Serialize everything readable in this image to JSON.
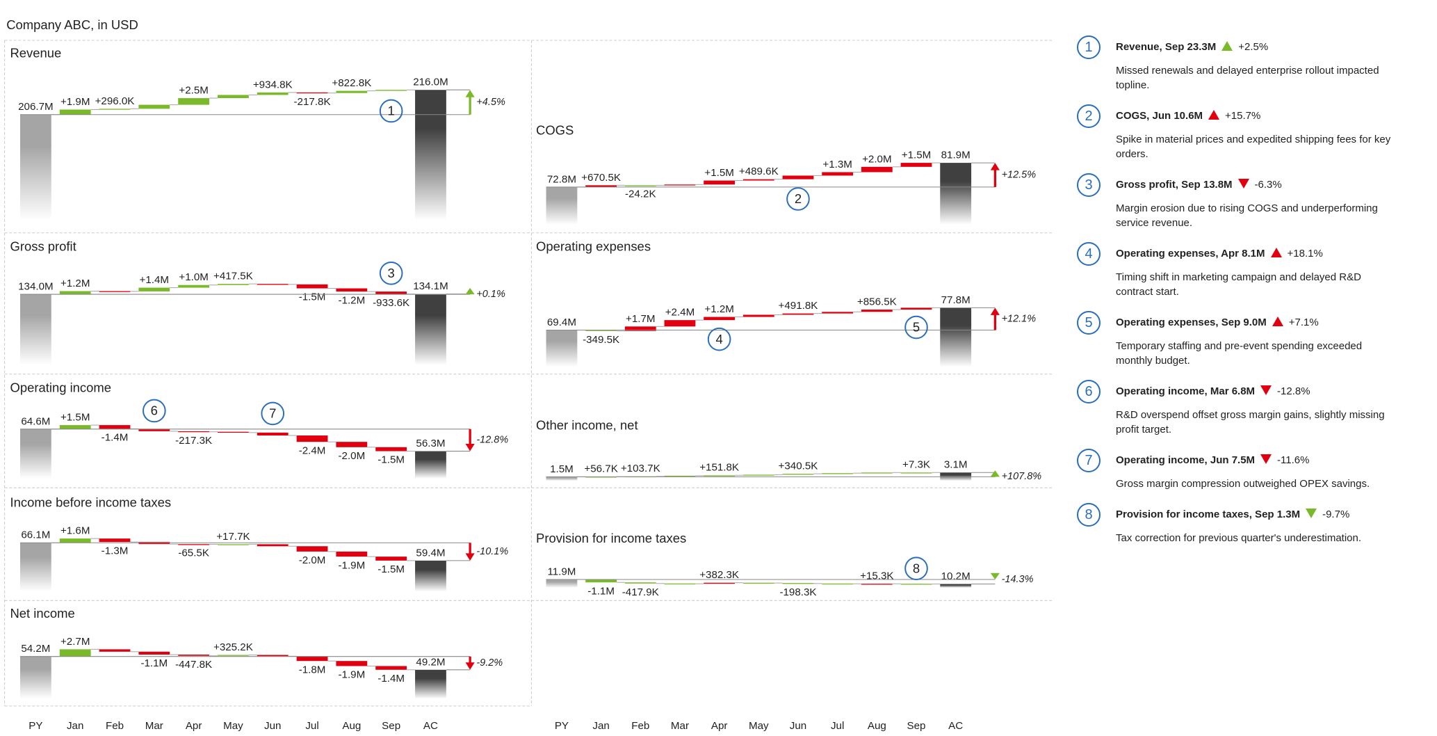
{
  "title": "Company ABC, in USD",
  "categories": [
    "PY",
    "Jan",
    "Feb",
    "Mar",
    "Apr",
    "May",
    "Jun",
    "Jul",
    "Aug",
    "Sep",
    "AC"
  ],
  "colors": {
    "good": "#7ab929",
    "bad": "#e1000f",
    "previous": "#a5a5a5",
    "actual": "#404040",
    "marker": "#2a6ebb"
  },
  "chart_data": [
    {
      "type": "waterfall",
      "title": "Revenue",
      "values": [
        206700000,
        1900000,
        296000,
        1500000,
        2500000,
        1200000,
        934800,
        -217800,
        822800,
        364000,
        216000000
      ],
      "value_labels": [
        "206.7M",
        "+1.9M",
        "+296.0K",
        null,
        "+2.5M",
        null,
        "+934.8K",
        "-217.8K",
        "+822.8K",
        null,
        "216.0M"
      ],
      "variance": {
        "value": 4.5,
        "label": "+4.5%"
      },
      "markers": [
        {
          "label": "1",
          "category": "Sep"
        }
      ]
    },
    {
      "type": "waterfall",
      "title": "Gross profit",
      "values": [
        134000000,
        1200000,
        -100000,
        1400000,
        1000000,
        417500,
        -184000,
        -1500000,
        -1200000,
        -933600,
        134100000
      ],
      "value_labels": [
        "134.0M",
        "+1.2M",
        null,
        "+1.4M",
        "+1.0M",
        "+417.5K",
        null,
        "-1.5M",
        "-1.2M",
        "-933.6K",
        "134.1M"
      ],
      "variance": {
        "value": 0.1,
        "label": "+0.1%"
      },
      "markers": [
        {
          "label": "3",
          "category": "Sep"
        }
      ]
    },
    {
      "type": "waterfall",
      "title": "Operating income",
      "values": [
        64600000,
        1500000,
        -1400000,
        -900000,
        -217300,
        -300000,
        -1082700,
        -2400000,
        -2000000,
        -1500000,
        56300000
      ],
      "value_labels": [
        "64.6M",
        "+1.5M",
        "-1.4M",
        null,
        "-217.3K",
        null,
        null,
        "-2.4M",
        "-2.0M",
        "-1.5M",
        "56.3M"
      ],
      "variance": {
        "value": -12.8,
        "label": "-12.8%"
      },
      "markers": [
        {
          "label": "6",
          "category": "Mar"
        },
        {
          "label": "7",
          "category": "Jun"
        }
      ]
    },
    {
      "type": "waterfall",
      "title": "Income before income taxes",
      "values": [
        66100000,
        1600000,
        -1300000,
        -800000,
        -65500,
        17700,
        -752200,
        -2000000,
        -1900000,
        -1500000,
        59400000
      ],
      "value_labels": [
        "66.1M",
        "+1.6M",
        "-1.3M",
        null,
        "-65.5K",
        "+17.7K",
        null,
        "-2.0M",
        "-1.9M",
        "-1.5M",
        "59.4M"
      ],
      "variance": {
        "value": -10.1,
        "label": "-10.1%"
      }
    },
    {
      "type": "waterfall",
      "title": "Net income",
      "values": [
        54200000,
        2700000,
        -900000,
        -1100000,
        -447800,
        325200,
        -477400,
        -1800000,
        -1900000,
        -1400000,
        49200000
      ],
      "value_labels": [
        "54.2M",
        "+2.7M",
        null,
        "-1.1M",
        "-447.8K",
        "+325.2K",
        null,
        "-1.8M",
        "-1.9M",
        "-1.4M",
        "49.2M"
      ],
      "variance": {
        "value": -9.2,
        "label": "-9.2%"
      }
    },
    {
      "type": "waterfall",
      "title": "COGS",
      "inverted": true,
      "values": [
        72800000,
        670500,
        -24200,
        300000,
        1500000,
        489600,
        1364100,
        1300000,
        2000000,
        1500000,
        81900000
      ],
      "value_labels": [
        "72.8M",
        "+670.5K",
        "-24.2K",
        null,
        "+1.5M",
        "+489.6K",
        null,
        "+1.3M",
        "+2.0M",
        "+1.5M",
        "81.9M"
      ],
      "variance": {
        "value": 12.5,
        "label": "+12.5%"
      },
      "markers": [
        {
          "label": "2",
          "category": "Jun"
        }
      ]
    },
    {
      "type": "waterfall",
      "title": "Operating expenses",
      "inverted": true,
      "values": [
        69400000,
        -349500,
        1700000,
        2400000,
        1200000,
        800000,
        491800,
        600000,
        856500,
        701200,
        77800000
      ],
      "value_labels": [
        "69.4M",
        "-349.5K",
        "+1.7M",
        "+2.4M",
        "+1.2M",
        null,
        "+491.8K",
        null,
        "+856.5K",
        null,
        "77.8M"
      ],
      "variance": {
        "value": 12.1,
        "label": "+12.1%"
      },
      "markers": [
        {
          "label": "4",
          "category": "Apr"
        },
        {
          "label": "5",
          "category": "Sep"
        }
      ]
    },
    {
      "type": "waterfall",
      "title": "Other income, net",
      "values": [
        1500000,
        56700,
        103700,
        235000,
        151800,
        235000,
        340500,
        235000,
        235000,
        7300,
        3100000
      ],
      "value_labels": [
        "1.5M",
        "+56.7K",
        "+103.7K",
        null,
        "+151.8K",
        null,
        "+340.5K",
        null,
        null,
        "+7.3K",
        "3.1M"
      ],
      "variance": {
        "value": 107.8,
        "label": "+107.8%"
      }
    },
    {
      "type": "waterfall",
      "title": "Provision for income taxes",
      "inverted": true,
      "values": [
        11900000,
        -1100000,
        -417900,
        -100000,
        382300,
        -100000,
        -198300,
        -100000,
        15300,
        -81400,
        10200000
      ],
      "value_labels": [
        "11.9M",
        "-1.1M",
        "-417.9K",
        null,
        "+382.3K",
        null,
        "-198.3K",
        null,
        "+15.3K",
        null,
        "10.2M"
      ],
      "variance": {
        "value": -14.3,
        "label": "-14.3%"
      },
      "markers": [
        {
          "label": "8",
          "category": "Sep"
        }
      ]
    }
  ],
  "notes": [
    {
      "number": "1",
      "heading": "Revenue, Sep 23.3M",
      "change": {
        "value": 2.5,
        "label": "+2.5%"
      },
      "color": "#7ab929",
      "text": "Missed renewals and delayed enterprise rollout impacted topline."
    },
    {
      "number": "2",
      "heading": "COGS, Jun 10.6M",
      "change": {
        "value": 15.7,
        "label": "+15.7%"
      },
      "color": "#e1000f",
      "text": "Spike in material prices and expedited shipping fees for key orders."
    },
    {
      "number": "3",
      "heading": "Gross profit, Sep 13.8M",
      "change": {
        "value": -6.3,
        "label": "-6.3%"
      },
      "color": "#e1000f",
      "text": "Margin erosion due to rising COGS and underperforming service revenue."
    },
    {
      "number": "4",
      "heading": "Operating expenses, Apr 8.1M",
      "change": {
        "value": 18.1,
        "label": "+18.1%"
      },
      "color": "#e1000f",
      "text": "Timing shift in marketing campaign and delayed R&D contract start."
    },
    {
      "number": "5",
      "heading": "Operating expenses, Sep 9.0M",
      "change": {
        "value": 7.1,
        "label": "+7.1%"
      },
      "color": "#e1000f",
      "text": "Temporary staffing and pre-event spending exceeded monthly budget."
    },
    {
      "number": "6",
      "heading": "Operating income, Mar 6.8M",
      "change": {
        "value": -12.8,
        "label": "-12.8%"
      },
      "color": "#e1000f",
      "text": "R&D overspend offset gross margin gains, slightly missing profit target."
    },
    {
      "number": "7",
      "heading": "Operating income, Jun 7.5M",
      "change": {
        "value": -11.6,
        "label": "-11.6%"
      },
      "color": "#e1000f",
      "text": "Gross margin compression outweighed OPEX savings."
    },
    {
      "number": "8",
      "heading": "Provision for income taxes, Sep 1.3M",
      "change": {
        "value": -9.7,
        "label": "-9.7%"
      },
      "color": "#7ab929",
      "text": "Tax correction for previous quarter's underestimation."
    }
  ]
}
